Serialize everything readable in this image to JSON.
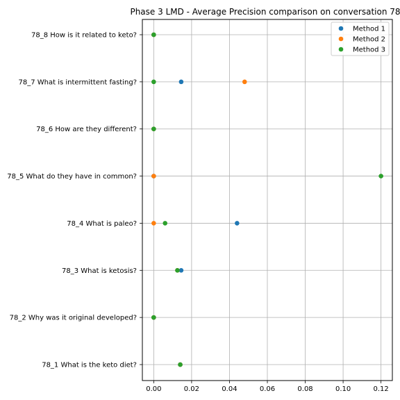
{
  "chart_data": {
    "type": "scatter",
    "title": "Phase 3 LMD - Average Precision comparison on conversation 78",
    "xlabel": "",
    "ylabel": "",
    "categories": [
      "78_1 What is the keto diet?",
      "78_2 Why was it original developed?",
      "78_3 What is ketosis?",
      "78_4 What is paleo?",
      "78_5 What do they have in common?",
      "78_6 How are they different?",
      "78_7 What is intermittent fasting?",
      "78_8 How is it related to keto?"
    ],
    "xlim": [
      -0.006,
      0.126
    ],
    "xticks": [
      0.0,
      0.02,
      0.04,
      0.06,
      0.08,
      0.1,
      0.12
    ],
    "xtick_labels": [
      "0.00",
      "0.02",
      "0.04",
      "0.06",
      "0.08",
      "0.10",
      "0.12"
    ],
    "grid": true,
    "legend_position": "top-right",
    "series": [
      {
        "name": "Method 1",
        "color": "#1f77b4",
        "values": [
          0.014,
          0.0,
          0.0145,
          0.044,
          0.0,
          0.0,
          0.0145,
          0.0
        ]
      },
      {
        "name": "Method 2",
        "color": "#ff7f0e",
        "values": [
          0.014,
          0.0,
          0.0125,
          0.0,
          0.0,
          0.0,
          0.048,
          0.0
        ]
      },
      {
        "name": "Method 3",
        "color": "#2ca02c",
        "values": [
          0.014,
          0.0,
          0.0125,
          0.006,
          0.12,
          0.0,
          0.0,
          0.0
        ]
      }
    ]
  }
}
